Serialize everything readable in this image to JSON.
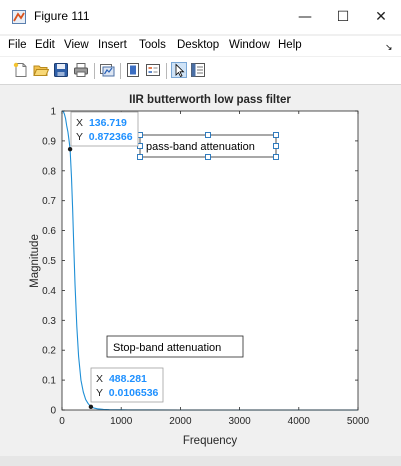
{
  "window": {
    "title": "Figure 111",
    "controls": {
      "minimize": "—",
      "maximize": "☐",
      "close": "✕"
    }
  },
  "menu": {
    "items": [
      "File",
      "Edit",
      "View",
      "Insert",
      "Tools",
      "Desktop",
      "Window",
      "Help"
    ]
  },
  "toolbar": {
    "icons": [
      "new-figure-icon",
      "open-file-icon",
      "save-icon",
      "print-icon",
      "link-plot-icon",
      "colorbar-icon",
      "legend-icon",
      "pointer-icon",
      "property-editor-icon"
    ]
  },
  "plot": {
    "title": "IIR butterworth low pass filter",
    "xlabel": "Frequency",
    "ylabel": "Magnitude",
    "xticks": [
      "0",
      "1000",
      "2000",
      "3000",
      "4000",
      "5000"
    ],
    "yticks": [
      "0",
      "0.1",
      "0.2",
      "0.3",
      "0.4",
      "0.5",
      "0.6",
      "0.7",
      "0.8",
      "0.9",
      "1"
    ],
    "annotations": {
      "passband": "pass-band attenuation",
      "stopband": "Stop-band attenuation"
    },
    "datatips": [
      {
        "x_label": "X",
        "x_value": "136.719",
        "y_label": "Y",
        "y_value": "0.872366"
      },
      {
        "x_label": "X",
        "x_value": "488.281",
        "y_label": "Y",
        "y_value": "0.0106536"
      }
    ],
    "line_color": "#1f8fd6",
    "datatip_value_color": "#1e90ff"
  },
  "chart_data": {
    "type": "line",
    "title": "IIR butterworth low pass filter",
    "xlabel": "Frequency",
    "ylabel": "Magnitude",
    "xlim": [
      0,
      5000
    ],
    "ylim": [
      0,
      1
    ],
    "grid": false,
    "series": [
      {
        "x": [
          0,
          20,
          40,
          60,
          80,
          100,
          120,
          136.719,
          160,
          180,
          200,
          220,
          250,
          280,
          320,
          360,
          400,
          440,
          488.281,
          550,
          600,
          700,
          800,
          1000,
          1200,
          1500,
          2000,
          2500,
          3000,
          3500,
          4000,
          4500,
          5000
        ],
        "values": [
          1,
          0.999,
          0.99,
          0.975,
          0.95,
          0.93,
          0.9,
          0.872366,
          0.78,
          0.67,
          0.54,
          0.42,
          0.28,
          0.18,
          0.1,
          0.06,
          0.035,
          0.022,
          0.0106536,
          0.006,
          0.004,
          0.002,
          0.001,
          0.0005,
          0.0003,
          0.0001,
          0,
          0,
          0,
          0,
          0,
          0,
          0
        ]
      }
    ],
    "datatips": [
      {
        "x": 136.719,
        "y": 0.872366
      },
      {
        "x": 488.281,
        "y": 0.0106536
      }
    ]
  }
}
